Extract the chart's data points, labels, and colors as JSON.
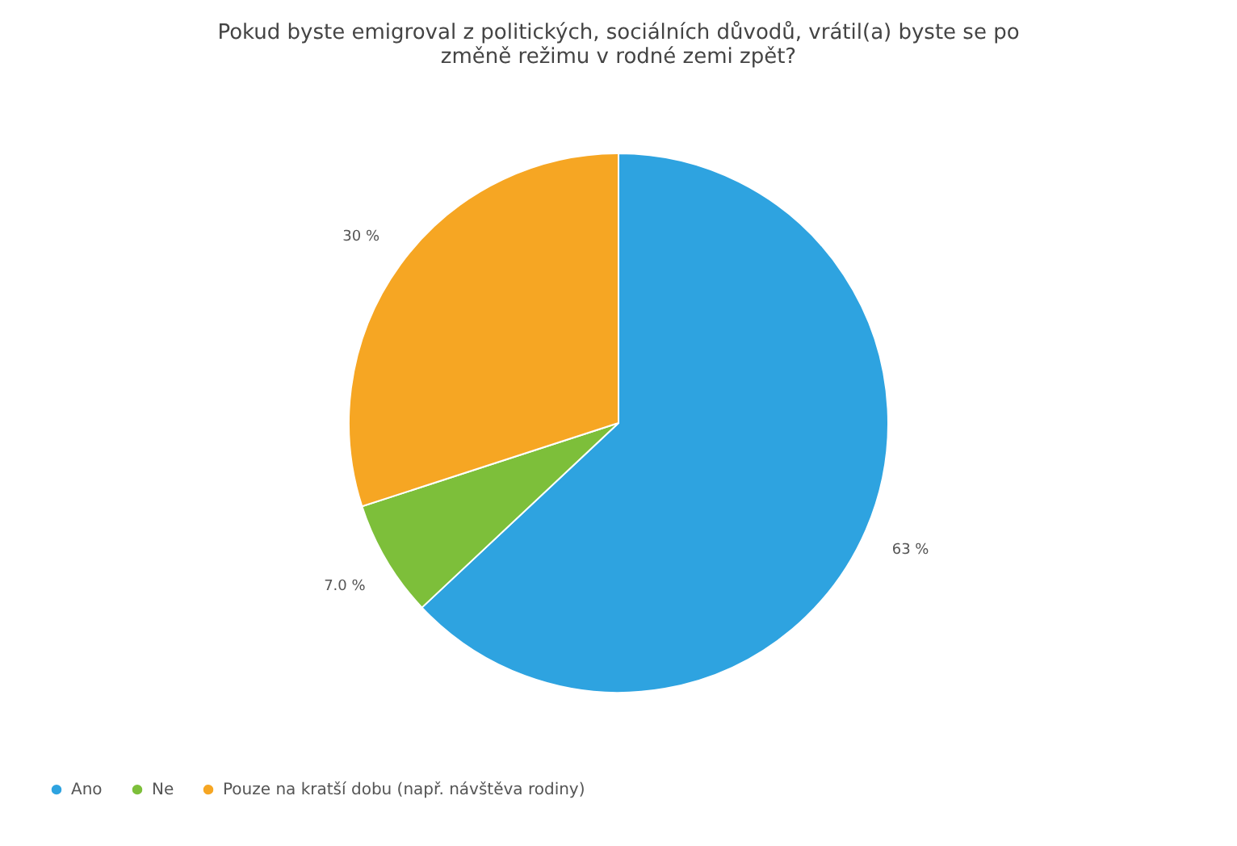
{
  "chart_data": {
    "type": "pie",
    "title": "Pokud byste emigroval z politických, sociálních důvodů, vrátil(a) byste se po změně režimu v rodné zemi zpět?",
    "categories": [
      "Ano",
      "Ne",
      "Pouze na kratší dobu (např. návštěva rodiny)"
    ],
    "values": [
      63,
      7.0,
      30
    ],
    "colors": [
      "#2ea3e0",
      "#7dbf3a",
      "#f6a623"
    ],
    "value_labels": [
      "63 %",
      "7.0 %",
      "30 %"
    ],
    "legend": "bottom left"
  }
}
